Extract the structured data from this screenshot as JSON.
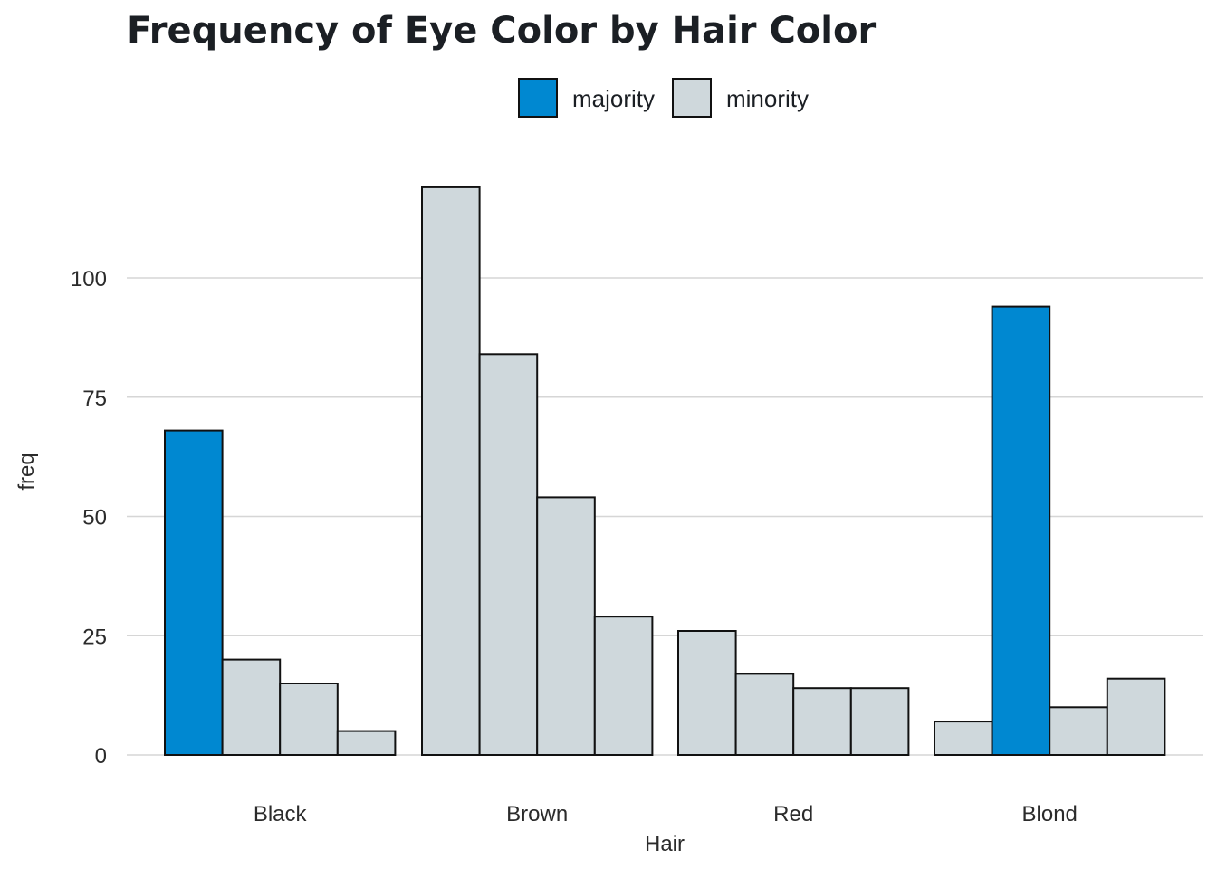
{
  "chart_data": {
    "type": "bar",
    "title": "Frequency of Eye Color by Hair Color",
    "xlabel": "Hair",
    "ylabel": "freq",
    "categories": [
      "Black",
      "Brown",
      "Red",
      "Blond"
    ],
    "ylim": [
      0,
      120
    ],
    "yticks": [
      0,
      25,
      50,
      75,
      100
    ],
    "grid": true,
    "legend_position": "top",
    "legend": [
      {
        "label": "majority",
        "color": "#0088d1"
      },
      {
        "label": "minority",
        "color": "#cfd8dc"
      }
    ],
    "bars": [
      [
        {
          "value": 68,
          "group": "majority"
        },
        {
          "value": 20,
          "group": "minority"
        },
        {
          "value": 15,
          "group": "minority"
        },
        {
          "value": 5,
          "group": "minority"
        }
      ],
      [
        {
          "value": 119,
          "group": "minority"
        },
        {
          "value": 84,
          "group": "minority"
        },
        {
          "value": 54,
          "group": "minority"
        },
        {
          "value": 29,
          "group": "minority"
        }
      ],
      [
        {
          "value": 26,
          "group": "minority"
        },
        {
          "value": 17,
          "group": "minority"
        },
        {
          "value": 14,
          "group": "minority"
        },
        {
          "value": 14,
          "group": "minority"
        }
      ],
      [
        {
          "value": 7,
          "group": "minority"
        },
        {
          "value": 94,
          "group": "majority"
        },
        {
          "value": 10,
          "group": "minority"
        },
        {
          "value": 16,
          "group": "minority"
        }
      ]
    ]
  }
}
